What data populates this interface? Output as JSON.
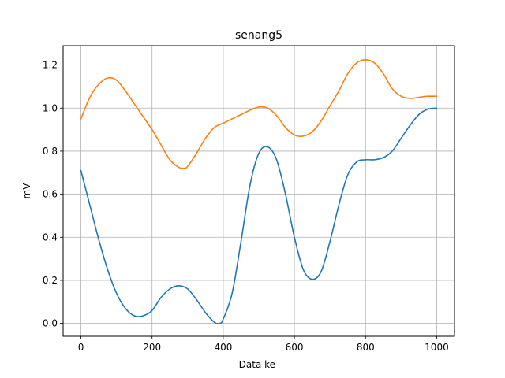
{
  "chart_data": {
    "type": "line",
    "title": "senang5",
    "xlabel": "Data ke-",
    "ylabel": "mV",
    "xlim": [
      -50,
      1050
    ],
    "ylim": [
      -0.06,
      1.29
    ],
    "xticks": [
      0,
      200,
      400,
      600,
      800,
      1000
    ],
    "yticks": [
      0.0,
      0.2,
      0.4,
      0.6,
      0.8,
      1.0,
      1.2
    ],
    "xtick_labels": [
      "0",
      "200",
      "400",
      "600",
      "800",
      "1000"
    ],
    "ytick_labels": [
      "0.0",
      "0.2",
      "0.4",
      "0.6",
      "0.8",
      "1.0",
      "1.2"
    ],
    "grid": true,
    "series": [
      {
        "color": "#1f77b4",
        "x": [
          0,
          25,
          50,
          75,
          100,
          125,
          150,
          175,
          200,
          225,
          250,
          275,
          300,
          325,
          350,
          375,
          390,
          400,
          425,
          450,
          475,
          500,
          525,
          550,
          575,
          600,
          625,
          650,
          675,
          700,
          725,
          750,
          775,
          800,
          825,
          850,
          875,
          900,
          925,
          950,
          975,
          1000
        ],
        "y": [
          0.71,
          0.55,
          0.39,
          0.25,
          0.14,
          0.07,
          0.035,
          0.035,
          0.06,
          0.12,
          0.16,
          0.175,
          0.16,
          0.11,
          0.05,
          0.005,
          0.0,
          0.02,
          0.14,
          0.38,
          0.64,
          0.79,
          0.82,
          0.76,
          0.6,
          0.4,
          0.25,
          0.205,
          0.24,
          0.38,
          0.55,
          0.69,
          0.75,
          0.76,
          0.76,
          0.77,
          0.8,
          0.86,
          0.92,
          0.97,
          0.995,
          1.0
        ]
      },
      {
        "color": "#ff7f0e",
        "x": [
          0,
          25,
          50,
          75,
          100,
          125,
          150,
          175,
          200,
          225,
          250,
          275,
          290,
          300,
          325,
          350,
          375,
          400,
          425,
          450,
          475,
          500,
          525,
          550,
          575,
          600,
          625,
          650,
          675,
          700,
          725,
          750,
          775,
          800,
          825,
          850,
          875,
          900,
          925,
          950,
          975,
          1000
        ],
        "y": [
          0.95,
          1.05,
          1.11,
          1.14,
          1.13,
          1.08,
          1.02,
          0.96,
          0.9,
          0.83,
          0.76,
          0.725,
          0.72,
          0.73,
          0.79,
          0.86,
          0.91,
          0.93,
          0.95,
          0.97,
          0.99,
          1.005,
          1.0,
          0.965,
          0.91,
          0.875,
          0.87,
          0.89,
          0.94,
          1.01,
          1.08,
          1.16,
          1.21,
          1.225,
          1.21,
          1.16,
          1.09,
          1.055,
          1.045,
          1.05,
          1.055,
          1.055
        ]
      }
    ]
  }
}
